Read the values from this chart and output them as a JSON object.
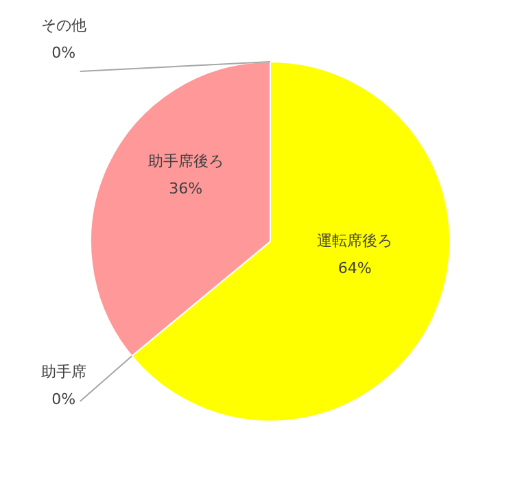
{
  "chart_data": {
    "type": "pie",
    "categories": [
      "運転席後ろ",
      "助手席",
      "助手席後ろ",
      "その他"
    ],
    "values": [
      64,
      0,
      36,
      0
    ],
    "colors": [
      "#ffff00",
      "#99ccff",
      "#ff9999",
      "#cccccc"
    ],
    "value_labels": [
      "64%",
      "0%",
      "36%",
      "0%"
    ]
  }
}
